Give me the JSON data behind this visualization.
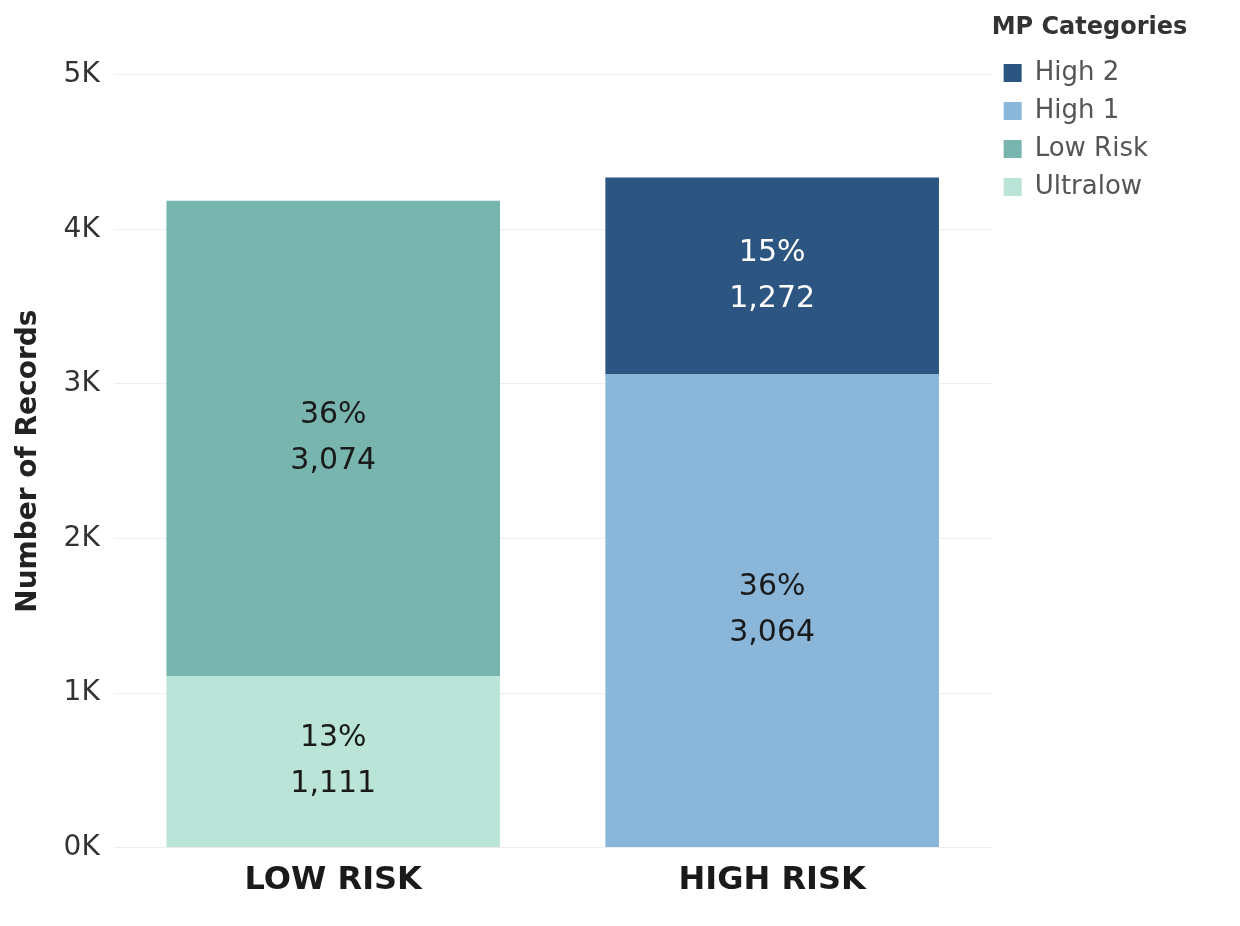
{
  "chart_data": {
    "type": "bar",
    "ylabel": "Number of Records",
    "legend_title": "MP Categories",
    "categories": [
      "LOW RISK",
      "HIGH RISK"
    ],
    "series": [
      {
        "name": "Ultralow",
        "color": "#bae4d8",
        "values": [
          1111,
          null
        ],
        "value_labels": [
          "13%\n1,111",
          null
        ]
      },
      {
        "name": "Low Risk",
        "color": "#78b5af",
        "values": [
          3074,
          null
        ],
        "value_labels": [
          "36%\n3,074",
          null
        ]
      },
      {
        "name": "High 1",
        "color": "#8ab6d9",
        "values": [
          null,
          3064
        ],
        "value_labels": [
          null,
          "36%\n3,064"
        ]
      },
      {
        "name": "High 2",
        "color": "#2c5681",
        "values": [
          null,
          1272
        ],
        "value_labels": [
          null,
          "15%\n1,272"
        ]
      }
    ],
    "stacked": true,
    "ylim": [
      0,
      5000
    ],
    "yticks": [
      {
        "value": 0,
        "label": "0K"
      },
      {
        "value": 1000,
        "label": "1K"
      },
      {
        "value": 2000,
        "label": "2K"
      },
      {
        "value": 3000,
        "label": "3K"
      },
      {
        "value": 4000,
        "label": "4K"
      },
      {
        "value": 5000,
        "label": "5K"
      }
    ],
    "grid": "y",
    "legend": "top right"
  }
}
